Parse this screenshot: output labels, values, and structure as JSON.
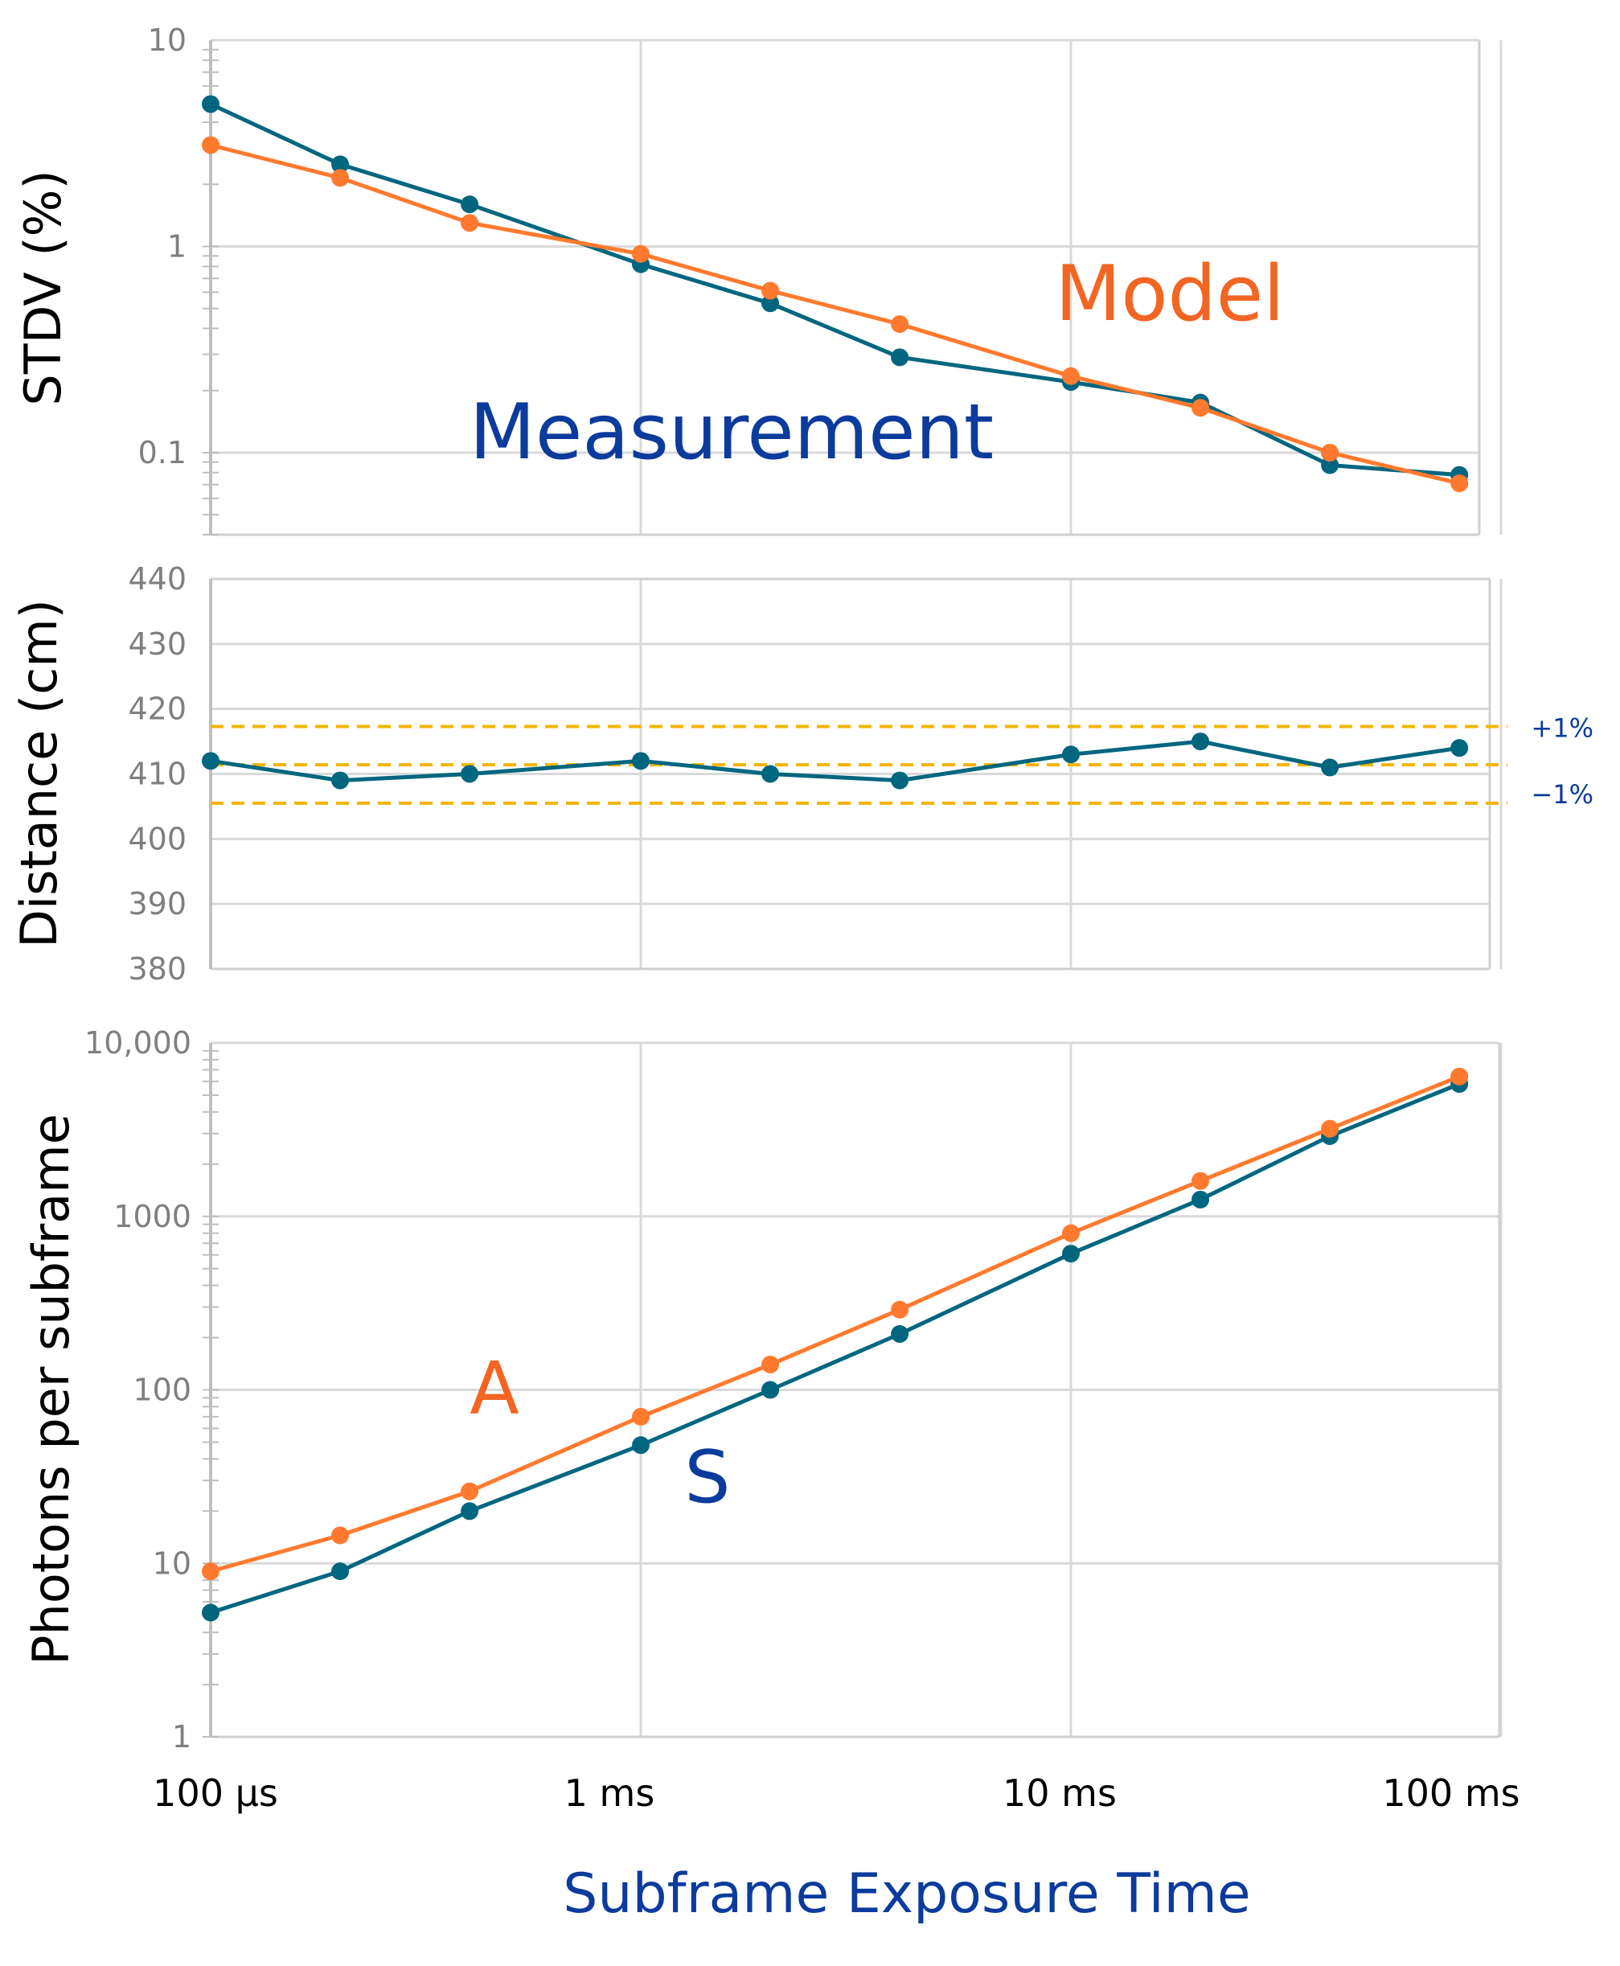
{
  "colors": {
    "measurement": "#00667f",
    "model": "#ff7a2e",
    "label_blue": "#0b3b9c",
    "label_orange": "#f26522",
    "threshold": "#f4b400",
    "grid": "#d9d9d9",
    "frame": "#d0d0d0",
    "tick": "#7f7f7f"
  },
  "x_axis": {
    "label": "Subframe Exposure Time",
    "tick_labels": [
      "100 µs",
      "1 ms",
      "10 ms",
      "100 ms"
    ],
    "tick_values_s": [
      0.0001,
      0.001,
      0.01,
      0.1
    ],
    "scale": "log"
  },
  "chart_data": [
    {
      "type": "line",
      "id": "stdv",
      "ylabel": "STDV (%)",
      "yscale": "log",
      "ylim": [
        0.04,
        10
      ],
      "ytick_values": [
        0.1,
        1,
        10
      ],
      "ytick_labels": [
        "0.1",
        "1",
        "10"
      ],
      "x": [
        0.0001,
        0.0002,
        0.0004,
        0.001,
        0.002,
        0.004,
        0.01,
        0.02,
        0.04,
        0.08
      ],
      "series": [
        {
          "name": "Measurement",
          "color_key": "measurement",
          "values": [
            4.9,
            2.5,
            1.6,
            0.82,
            0.53,
            0.29,
            0.22,
            0.175,
            0.087,
            0.078
          ]
        },
        {
          "name": "Model",
          "color_key": "model",
          "values": [
            3.1,
            2.15,
            1.3,
            0.92,
            0.61,
            0.42,
            0.235,
            0.165,
            0.1,
            0.071
          ]
        }
      ],
      "annotations": [
        {
          "text": "Model",
          "color_key": "label_orange"
        },
        {
          "text": "Measurement",
          "color_key": "label_blue"
        }
      ]
    },
    {
      "type": "line",
      "id": "distance",
      "ylabel": "Distance (cm)",
      "yscale": "linear",
      "ylim": [
        380,
        440
      ],
      "ytick_values": [
        380,
        390,
        400,
        410,
        420,
        430,
        440
      ],
      "ytick_labels": [
        "380",
        "390",
        "400",
        "410",
        "420",
        "430",
        "440"
      ],
      "x": [
        0.0001,
        0.0002,
        0.0004,
        0.001,
        0.002,
        0.004,
        0.01,
        0.02,
        0.04,
        0.08
      ],
      "series": [
        {
          "name": "Distance",
          "color_key": "measurement",
          "values": [
            412,
            409,
            410,
            412,
            410,
            409,
            413,
            415,
            411,
            414
          ]
        }
      ],
      "reference_lines": [
        {
          "label": "+1%",
          "value": 417.3
        },
        {
          "label": "",
          "value": 411.4
        },
        {
          "label": "−1%",
          "value": 405.5
        }
      ]
    },
    {
      "type": "line",
      "id": "photons",
      "ylabel": "Photons per subframe",
      "yscale": "log",
      "ylim": [
        1,
        10000
      ],
      "ytick_values": [
        1,
        10,
        100,
        1000,
        10000
      ],
      "ytick_labels": [
        "1",
        "10",
        "100",
        "1000",
        "10,000"
      ],
      "x": [
        0.0001,
        0.0002,
        0.0004,
        0.001,
        0.002,
        0.004,
        0.01,
        0.02,
        0.04,
        0.08
      ],
      "series": [
        {
          "name": "S",
          "color_key": "measurement",
          "values": [
            5.2,
            9,
            20,
            48,
            100,
            210,
            610,
            1250,
            2900,
            5800
          ]
        },
        {
          "name": "A",
          "color_key": "model",
          "values": [
            9,
            14.5,
            26,
            70,
            140,
            290,
            800,
            1600,
            3200,
            6400
          ]
        }
      ],
      "annotations": [
        {
          "text": "A",
          "color_key": "label_orange"
        },
        {
          "text": "S",
          "color_key": "label_blue"
        }
      ]
    }
  ]
}
